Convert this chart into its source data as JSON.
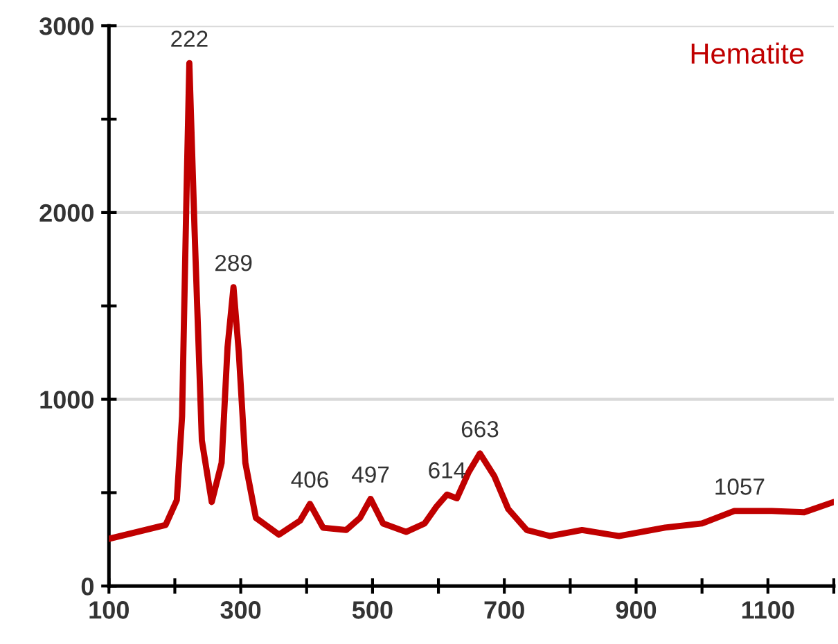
{
  "chart_data": {
    "type": "line",
    "series": [
      {
        "name": "Hematite",
        "color": "#c00000",
        "x": [
          100,
          186,
          203,
          211,
          218,
          222,
          230,
          241,
          256,
          271,
          280,
          289,
          297,
          307,
          323,
          358,
          390,
          405,
          425,
          460,
          481,
          497,
          516,
          551,
          579,
          597,
          613,
          628,
          646,
          662,
          663,
          685,
          706,
          734,
          769,
          818,
          874,
          944,
          1000,
          1049,
          1106,
          1155,
          1200
        ],
        "values": [
          253,
          327,
          460,
          910,
          2150,
          2800,
          1900,
          780,
          450,
          660,
          1280,
          1600,
          1255,
          660,
          365,
          275,
          350,
          440,
          312,
          300,
          365,
          467,
          335,
          290,
          335,
          425,
          490,
          470,
          610,
          705,
          710,
          587,
          412,
          300,
          268,
          300,
          268,
          313,
          335,
          402,
          402,
          395,
          450
        ]
      }
    ],
    "xlim": [
      100,
      1200
    ],
    "xticks": [
      100,
      {
        "value": 200,
        "label": null
      },
      300,
      {
        "value": 400,
        "label": null
      },
      500,
      {
        "value": 600,
        "label": null
      },
      700,
      {
        "value": 800,
        "label": null
      },
      900,
      {
        "value": 1000,
        "label": null
      },
      1100,
      {
        "value": 1200,
        "label": null
      }
    ],
    "ylim": [
      0,
      3000
    ],
    "yticks": [
      0,
      {
        "value": 500,
        "label": null
      },
      1000,
      {
        "value": 1500,
        "label": null
      },
      2000,
      {
        "value": 2500,
        "label": null
      },
      3000
    ],
    "grid": "y",
    "annotations": [
      {
        "text": "222",
        "x": 222,
        "y": 2800
      },
      {
        "text": "289",
        "x": 289,
        "y": 1600
      },
      {
        "text": "406",
        "x": 405,
        "y": 440
      },
      {
        "text": "497",
        "x": 497,
        "y": 467
      },
      {
        "text": "614",
        "x": 613,
        "y": 490
      },
      {
        "text": "663",
        "x": 663,
        "y": 710
      },
      {
        "text": "1057",
        "x": 1057,
        "y": 402
      }
    ]
  }
}
